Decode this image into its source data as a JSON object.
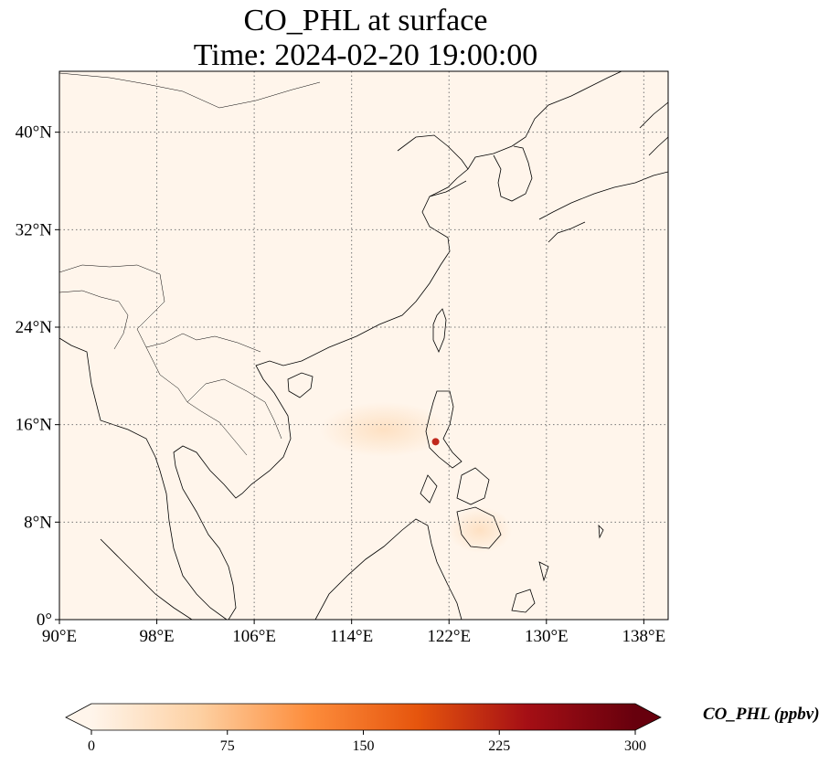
{
  "title_line1": "CO_PHL at surface",
  "title_line2": "Time: 2024-02-20 19:00:00",
  "map": {
    "lon_range": [
      90,
      140
    ],
    "lat_range": [
      0,
      45
    ],
    "lon_ticks": [
      {
        "value": 90,
        "label": "90°E"
      },
      {
        "value": 98,
        "label": "98°E"
      },
      {
        "value": 106,
        "label": "106°E"
      },
      {
        "value": 114,
        "label": "114°E"
      },
      {
        "value": 122,
        "label": "122°E"
      },
      {
        "value": 130,
        "label": "130°E"
      },
      {
        "value": 138,
        "label": "138°E"
      }
    ],
    "lat_ticks": [
      {
        "value": 0,
        "label": "0°"
      },
      {
        "value": 8,
        "label": "8°N"
      },
      {
        "value": 16,
        "label": "16°N"
      },
      {
        "value": 24,
        "label": "24°N"
      },
      {
        "value": 32,
        "label": "32°N"
      },
      {
        "value": 40,
        "label": "40°N"
      }
    ],
    "gridlines": "dotted",
    "background_color": "#fff5eb",
    "hotspot": {
      "lon": 120.9,
      "lat": 14.6,
      "color": "#c0281d"
    }
  },
  "colorbar": {
    "title": "CO_PHL (ppbv)",
    "min": 0,
    "max": 300,
    "ticks": [
      {
        "value": 0,
        "label": "0"
      },
      {
        "value": 75,
        "label": "75"
      },
      {
        "value": 150,
        "label": "150"
      },
      {
        "value": 225,
        "label": "225"
      },
      {
        "value": 300,
        "label": "300"
      }
    ],
    "colormap": [
      "#fff5eb",
      "#fdd0a2",
      "#fd8d3c",
      "#e6550d",
      "#a50f15",
      "#67000d"
    ],
    "extend": "both"
  }
}
